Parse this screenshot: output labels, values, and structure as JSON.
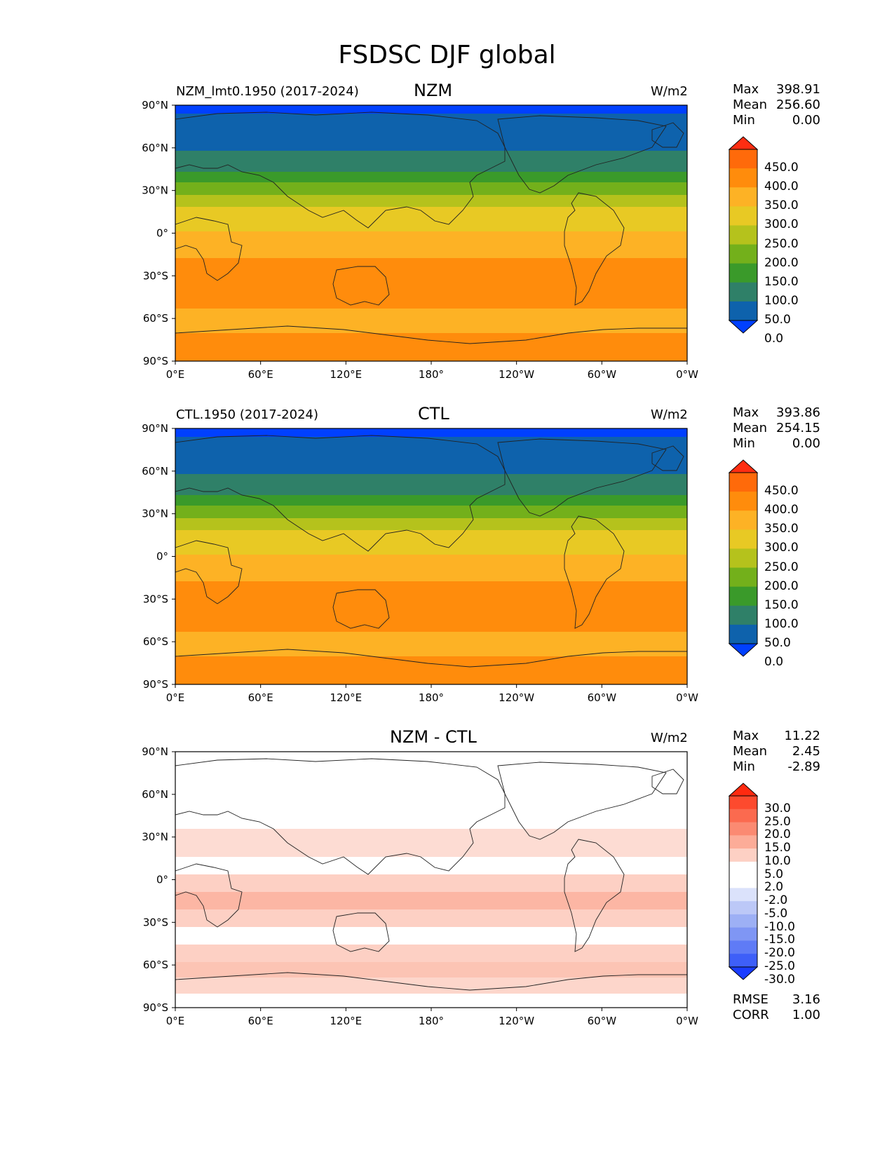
{
  "figure": {
    "title": "FSDSC DJF global"
  },
  "axes": {
    "lat_labels": [
      "90°N",
      "60°N",
      "30°N",
      "0°",
      "30°S",
      "60°S",
      "90°S"
    ],
    "lon_labels": [
      "0°E",
      "60°E",
      "120°E",
      "180°",
      "120°W",
      "60°W",
      "0°W"
    ]
  },
  "panels": [
    {
      "left_label": "NZM_lmt0.1950 (2017-2024)",
      "center_label": "NZM",
      "units": "W/m2",
      "stats": {
        "max_label": "Max",
        "max": "398.91",
        "mean_label": "Mean",
        "mean": "256.60",
        "min_label": "Min",
        "min": "0.00"
      },
      "colorbar": {
        "levels": [
          "450.0",
          "400.0",
          "350.0",
          "300.0",
          "250.0",
          "200.0",
          "150.0",
          "100.0",
          "50.0",
          "0.0"
        ],
        "colors": [
          "#ff2e12",
          "#ff6a0a",
          "#ff8c0c",
          "#fdb225",
          "#e8c924",
          "#b5c21c",
          "#73b01b",
          "#3a9a2a",
          "#2f8068",
          "#0e62ac",
          "#0040ff"
        ]
      }
    },
    {
      "left_label": "CTL.1950 (2017-2024)",
      "center_label": "CTL",
      "units": "W/m2",
      "stats": {
        "max_label": "Max",
        "max": "393.86",
        "mean_label": "Mean",
        "mean": "254.15",
        "min_label": "Min",
        "min": "0.00"
      },
      "colorbar": {
        "levels": [
          "450.0",
          "400.0",
          "350.0",
          "300.0",
          "250.0",
          "200.0",
          "150.0",
          "100.0",
          "50.0",
          "0.0"
        ],
        "colors": [
          "#ff2e12",
          "#ff6a0a",
          "#ff8c0c",
          "#fdb225",
          "#e8c924",
          "#b5c21c",
          "#73b01b",
          "#3a9a2a",
          "#2f8068",
          "#0e62ac",
          "#0040ff"
        ]
      }
    },
    {
      "left_label": "",
      "center_label": "NZM - CTL",
      "units": "W/m2",
      "stats": {
        "max_label": "Max",
        "max": "11.22",
        "mean_label": "Mean",
        "mean": "2.45",
        "min_label": "Min",
        "min": "-2.89"
      },
      "colorbar": {
        "levels": [
          "30.0",
          "25.0",
          "20.0",
          "15.0",
          "10.0",
          "5.0",
          "2.0",
          "-2.0",
          "-5.0",
          "-10.0",
          "-15.0",
          "-20.0",
          "-25.0",
          "-30.0"
        ],
        "colors": [
          "#ff2a10",
          "#fd4a2e",
          "#fb6a4f",
          "#fb8a72",
          "#fcac98",
          "#fdd0c4",
          "#ffffff",
          "#ffffff",
          "#dbe2fb",
          "#bcc8f7",
          "#9db0f5",
          "#7f96f4",
          "#5f7bf6",
          "#3e5ff8",
          "#1a3cff"
        ]
      },
      "footer": {
        "rmse_label": "RMSE",
        "rmse": "3.16",
        "corr_label": "CORR",
        "corr": "1.00"
      }
    }
  ]
}
